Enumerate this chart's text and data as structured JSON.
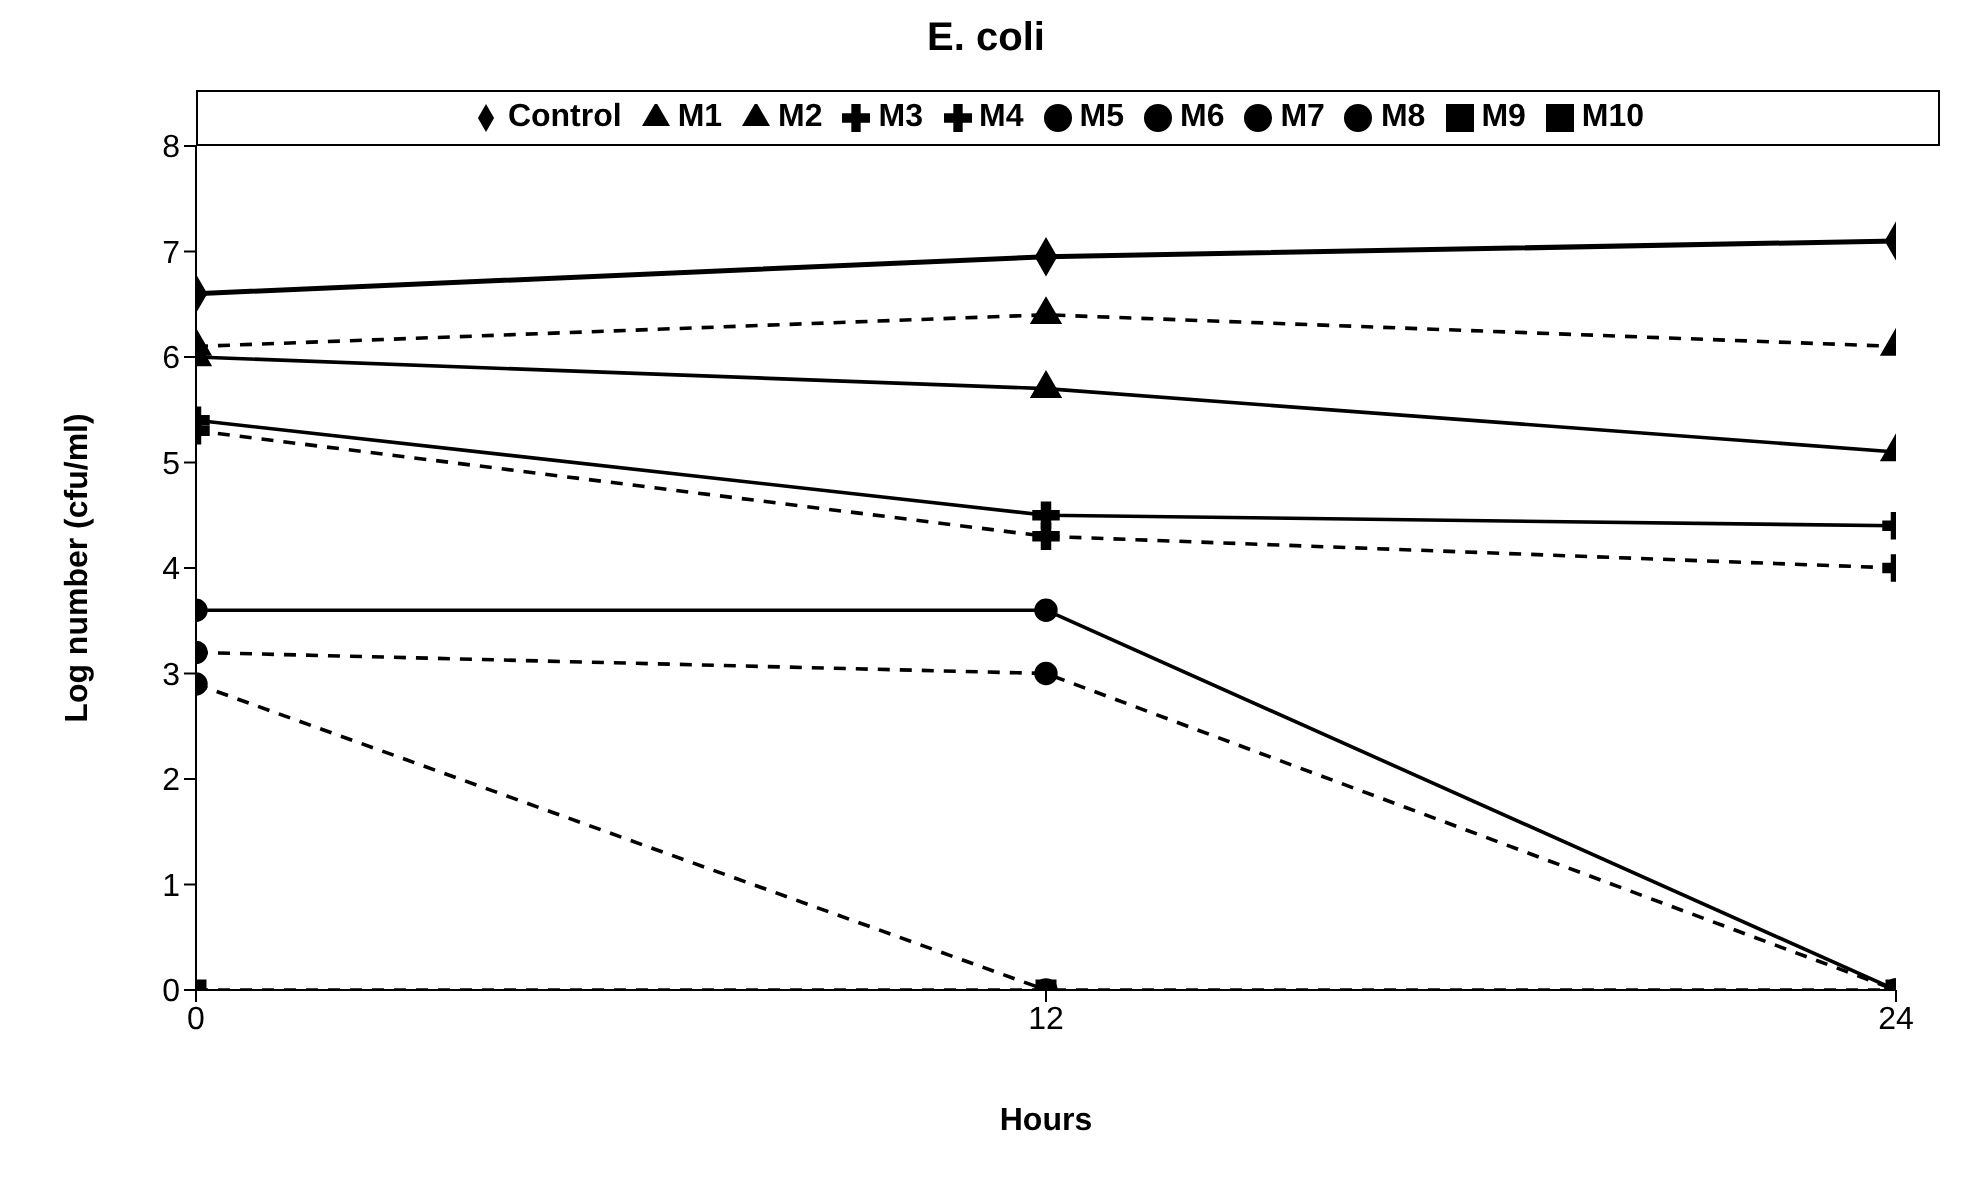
{
  "chart_data": {
    "type": "line",
    "title": "E. coli",
    "xlabel": "Hours",
    "ylabel": "Log number (cfu/ml)",
    "x": [
      0,
      12,
      24
    ],
    "xlim": [
      0,
      24
    ],
    "xticks": [
      0,
      12,
      24
    ],
    "ylim": [
      0,
      8
    ],
    "yticks": [
      0,
      1,
      2,
      3,
      4,
      5,
      6,
      7,
      8
    ],
    "grid": false,
    "legend": "top",
    "series": [
      {
        "name": "Control",
        "color": "#000000",
        "marker": "diamond",
        "line_style": "solid",
        "values": [
          6.6,
          6.95,
          7.1
        ]
      },
      {
        "name": "M1",
        "color": "#000000",
        "marker": "triangle",
        "line_style": "dashed",
        "values": [
          6.1,
          6.4,
          6.1
        ]
      },
      {
        "name": "M2",
        "color": "#000000",
        "marker": "triangle",
        "line_style": "solid",
        "values": [
          6.0,
          5.7,
          5.1
        ]
      },
      {
        "name": "M3",
        "color": "#000000",
        "marker": "cross",
        "line_style": "solid",
        "values": [
          5.4,
          4.5,
          4.4
        ]
      },
      {
        "name": "M4",
        "color": "#000000",
        "marker": "cross",
        "line_style": "dashed",
        "values": [
          5.3,
          4.3,
          4.0
        ]
      },
      {
        "name": "M5",
        "color": "#000000",
        "marker": "circle",
        "line_style": "solid",
        "values": [
          3.6,
          3.6,
          0
        ]
      },
      {
        "name": "M6",
        "color": "#000000",
        "marker": "circle",
        "line_style": "dashed",
        "values": [
          3.2,
          3.0,
          0
        ]
      },
      {
        "name": "M7",
        "color": "#000000",
        "marker": "circle",
        "line_style": "dashed",
        "values": [
          2.9,
          0,
          null
        ]
      },
      {
        "name": "M8",
        "color": "#000000",
        "marker": "circle",
        "line_style": "solid",
        "values": [
          null,
          null,
          null
        ]
      },
      {
        "name": "M9",
        "color": "#000000",
        "marker": "square",
        "line_style": "solid",
        "values": [
          null,
          null,
          null
        ]
      },
      {
        "name": "M10",
        "color": "#000000",
        "marker": "square",
        "line_style": "dashed",
        "values": [
          0,
          0,
          0
        ]
      }
    ]
  }
}
